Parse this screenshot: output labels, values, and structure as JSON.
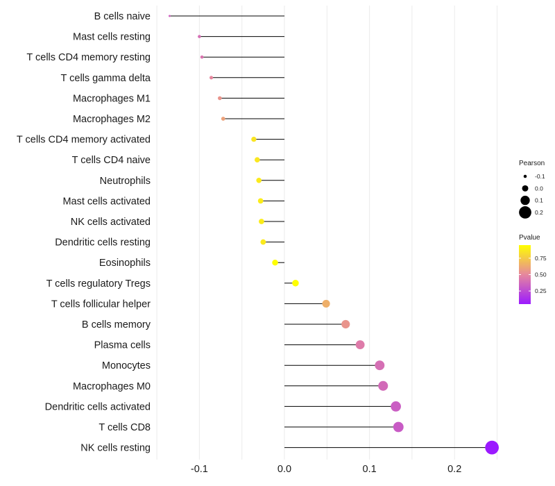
{
  "chart_data": {
    "type": "lollipop",
    "title": "",
    "xlabel": "",
    "ylabel": "",
    "xlim": [
      -0.15,
      0.26
    ],
    "xticks": [
      -0.1,
      0.0,
      0.1,
      0.2
    ],
    "xtick_labels": [
      "-0.1",
      "0.0",
      "0.1",
      "0.2"
    ],
    "grid": true,
    "categories": [
      "B cells naive",
      "Mast cells resting",
      "T cells CD4 memory resting",
      "T cells gamma delta",
      "Macrophages M1",
      "Macrophages M2",
      "T cells CD4 memory activated",
      "T cells CD4 naive",
      "Neutrophils",
      "Mast cells activated",
      "NK cells activated",
      "Dendritic cells resting",
      "Eosinophils",
      "T cells regulatory  Tregs ",
      "T cells follicular helper",
      "B cells memory",
      "Plasma cells",
      "Monocytes",
      "Macrophages M0",
      "Dendritic cells activated",
      "T cells CD8",
      "NK cells resting"
    ],
    "pearson": [
      -0.135,
      -0.1,
      -0.097,
      -0.086,
      -0.076,
      -0.072,
      -0.036,
      -0.032,
      -0.03,
      -0.028,
      -0.027,
      -0.025,
      -0.011,
      0.013,
      0.049,
      0.072,
      0.089,
      0.112,
      0.116,
      0.131,
      0.134,
      0.244
    ],
    "pvalue": [
      0.35,
      0.4,
      0.42,
      0.5,
      0.55,
      0.6,
      0.85,
      0.86,
      0.87,
      0.88,
      0.88,
      0.87,
      0.95,
      0.95,
      0.65,
      0.55,
      0.45,
      0.4,
      0.38,
      0.33,
      0.32,
      0.02
    ],
    "size_legend": {
      "title": "Pearson",
      "values": [
        -0.1,
        0.0,
        0.1,
        0.2
      ],
      "labels": [
        "-0.1",
        "0.0",
        "0.1",
        "0.2"
      ]
    },
    "color_legend": {
      "title": "Pvalue",
      "range": [
        0.05,
        0.95
      ],
      "ticks": [
        0.25,
        0.5,
        0.75
      ],
      "labels": [
        "0.25",
        "0.50",
        "0.75"
      ],
      "colors": {
        "low": "#9b1aff",
        "mid": "#e6879e",
        "high": "#ffff00"
      }
    }
  }
}
